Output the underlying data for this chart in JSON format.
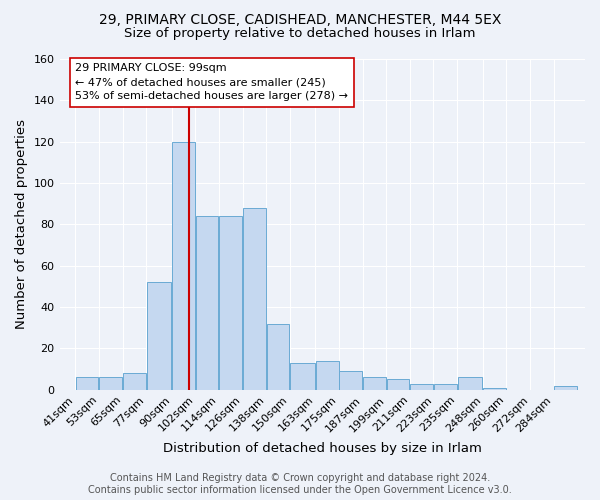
{
  "title1": "29, PRIMARY CLOSE, CADISHEAD, MANCHESTER, M44 5EX",
  "title2": "Size of property relative to detached houses in Irlam",
  "xlabel": "Distribution of detached houses by size in Irlam",
  "ylabel": "Number of detached properties",
  "footer1": "Contains HM Land Registry data © Crown copyright and database right 2024.",
  "footer2": "Contains public sector information licensed under the Open Government Licence v3.0.",
  "bar_labels": [
    "41sqm",
    "53sqm",
    "65sqm",
    "77sqm",
    "90sqm",
    "102sqm",
    "114sqm",
    "126sqm",
    "138sqm",
    "150sqm",
    "163sqm",
    "175sqm",
    "187sqm",
    "199sqm",
    "211sqm",
    "223sqm",
    "235sqm",
    "248sqm",
    "260sqm",
    "272sqm",
    "284sqm"
  ],
  "bar_values": [
    6,
    6,
    8,
    52,
    120,
    84,
    84,
    88,
    32,
    13,
    14,
    9,
    6,
    5,
    3,
    3,
    6,
    1,
    0,
    0,
    2
  ],
  "bar_color": "#c5d8f0",
  "bar_edgecolor": "#6aaad4",
  "vline_x": 99,
  "vline_color": "#cc0000",
  "annotation_text": "29 PRIMARY CLOSE: 99sqm\n← 47% of detached houses are smaller (245)\n53% of semi-detached houses are larger (278) →",
  "annotation_box_edgecolor": "#cc0000",
  "annotation_box_facecolor": "#ffffff",
  "ylim": [
    0,
    160
  ],
  "xlim_left": 33,
  "xlim_right": 300,
  "bg_color": "#eef2f9",
  "plot_bg_color": "#eef2f9",
  "grid_color": "#ffffff",
  "title_fontsize": 10,
  "subtitle_fontsize": 9.5,
  "axis_label_fontsize": 9.5,
  "tick_fontsize": 8,
  "annotation_fontsize": 8,
  "footer_fontsize": 7
}
